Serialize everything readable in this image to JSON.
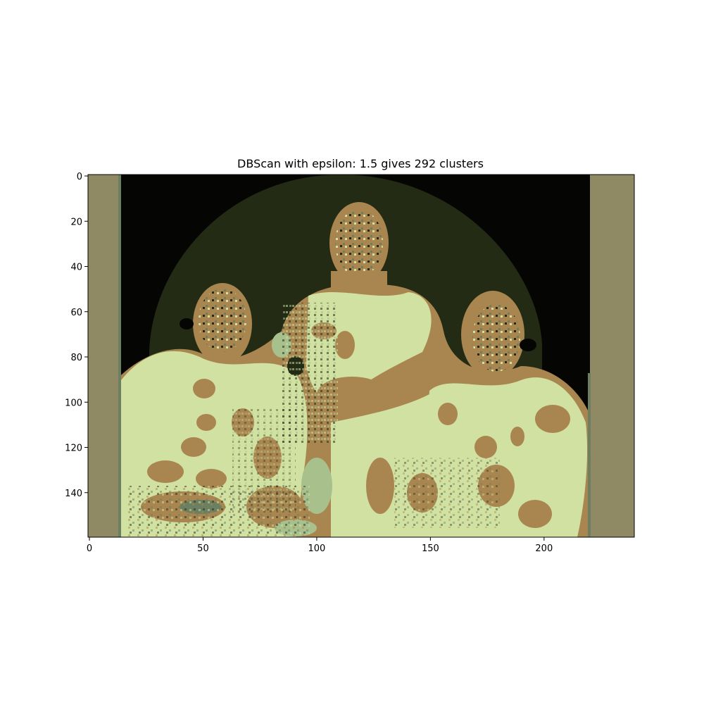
{
  "figure": {
    "title": "DBScan with epsilon: 1.5 gives 292 clusters"
  },
  "image_axes": {
    "x_range": [
      0,
      240
    ],
    "y_range": [
      0,
      160
    ],
    "y_inverted": true,
    "x_ticks": [
      0,
      50,
      100,
      150,
      200
    ],
    "y_ticks": [
      0,
      20,
      40,
      60,
      80,
      100,
      120,
      140
    ]
  },
  "palette": {
    "side_band": "#8f8a64",
    "background_dark": "#050604",
    "arch_dark_green": "#232b14",
    "skin_brown": "#a9864f",
    "light_green": "#d0e1a2",
    "grey_green": "#6d7f61",
    "pale_green": "#a8c08c",
    "cream": "#e8e6a8"
  },
  "content": {
    "description_hidden": false
  }
}
